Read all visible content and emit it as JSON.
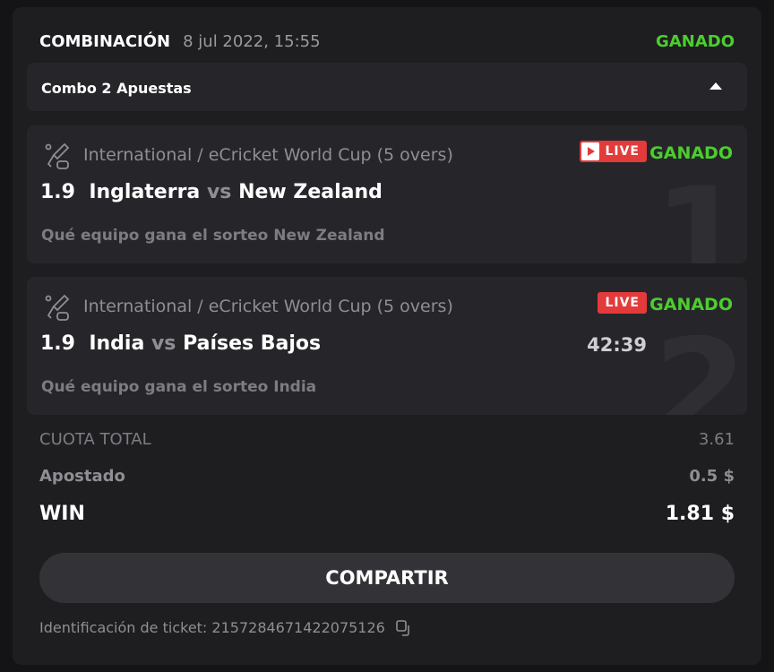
{
  "header": {
    "title": "COMBINACIÓN",
    "date": "8 jul 2022, 15:55",
    "status": "GANADO"
  },
  "combo": {
    "label": "Combo 2 Apuestas"
  },
  "bets": [
    {
      "league": "International / eCricket World Cup (5 overs)",
      "live": "LIVE",
      "status": "GANADO",
      "odds": "1.9",
      "home": "Inglaterra",
      "vs": "vs",
      "away": "New Zealand",
      "selection": "Qué equipo gana el sorteo New Zealand",
      "index": "1"
    },
    {
      "league": "International / eCricket World Cup (5 overs)",
      "live": "LIVE",
      "status": "GANADO",
      "odds": "1.9",
      "home": "India",
      "vs": "vs",
      "away": "Países Bajos",
      "selection": "Qué equipo gana el sorteo India",
      "index": "2",
      "time": "42:39"
    }
  ],
  "summary": {
    "total_label": "CUOTA TOTAL",
    "total": "3.61",
    "stake_label": "Apostado",
    "stake": "0.5 $",
    "win_label": "WIN",
    "win": "1.81 $"
  },
  "share_label": "COMPARTIR",
  "ticket": {
    "label": "Identificación de ticket:",
    "id": "2157284671422075126"
  },
  "colors": {
    "won": "#4ccd2e",
    "live": "#e33b3b"
  }
}
